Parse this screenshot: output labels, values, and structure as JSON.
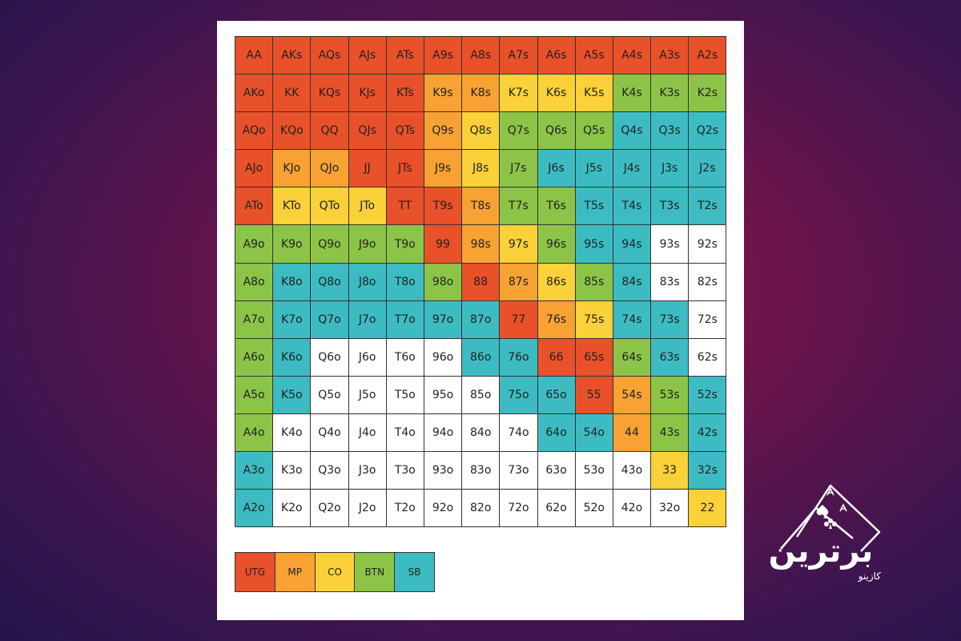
{
  "colors": {
    "UTG": "#e9512a",
    "MP": "#f7a233",
    "CO": "#fad138",
    "BTN": "#8cc448",
    "SB": "#3cbcc2",
    "NONE": "#ffffff"
  },
  "grid": [
    [
      [
        "AA",
        "UTG"
      ],
      [
        "AKs",
        "UTG"
      ],
      [
        "AQs",
        "UTG"
      ],
      [
        "AJs",
        "UTG"
      ],
      [
        "ATs",
        "UTG"
      ],
      [
        "A9s",
        "UTG"
      ],
      [
        "A8s",
        "UTG"
      ],
      [
        "A7s",
        "UTG"
      ],
      [
        "A6s",
        "UTG"
      ],
      [
        "A5s",
        "UTG"
      ],
      [
        "A4s",
        "UTG"
      ],
      [
        "A3s",
        "UTG"
      ],
      [
        "A2s",
        "UTG"
      ]
    ],
    [
      [
        "AKo",
        "UTG"
      ],
      [
        "KK",
        "UTG"
      ],
      [
        "KQs",
        "UTG"
      ],
      [
        "KJs",
        "UTG"
      ],
      [
        "KTs",
        "UTG"
      ],
      [
        "K9s",
        "MP"
      ],
      [
        "K8s",
        "MP"
      ],
      [
        "K7s",
        "CO"
      ],
      [
        "K6s",
        "CO"
      ],
      [
        "K5s",
        "CO"
      ],
      [
        "K4s",
        "BTN"
      ],
      [
        "K3s",
        "BTN"
      ],
      [
        "K2s",
        "BTN"
      ]
    ],
    [
      [
        "AQo",
        "UTG"
      ],
      [
        "KQo",
        "UTG"
      ],
      [
        "QQ",
        "UTG"
      ],
      [
        "QJs",
        "UTG"
      ],
      [
        "QTs",
        "UTG"
      ],
      [
        "Q9s",
        "MP"
      ],
      [
        "Q8s",
        "CO"
      ],
      [
        "Q7s",
        "BTN"
      ],
      [
        "Q6s",
        "BTN"
      ],
      [
        "Q5s",
        "BTN"
      ],
      [
        "Q4s",
        "SB"
      ],
      [
        "Q3s",
        "SB"
      ],
      [
        "Q2s",
        "SB"
      ]
    ],
    [
      [
        "AJo",
        "UTG"
      ],
      [
        "KJo",
        "MP"
      ],
      [
        "QJo",
        "MP"
      ],
      [
        "JJ",
        "UTG"
      ],
      [
        "JTs",
        "UTG"
      ],
      [
        "J9s",
        "MP"
      ],
      [
        "J8s",
        "CO"
      ],
      [
        "J7s",
        "BTN"
      ],
      [
        "J6s",
        "SB"
      ],
      [
        "J5s",
        "SB"
      ],
      [
        "J4s",
        "SB"
      ],
      [
        "J3s",
        "SB"
      ],
      [
        "J2s",
        "SB"
      ]
    ],
    [
      [
        "ATo",
        "UTG"
      ],
      [
        "KTo",
        "CO"
      ],
      [
        "QTo",
        "CO"
      ],
      [
        "JTo",
        "CO"
      ],
      [
        "TT",
        "UTG"
      ],
      [
        "T9s",
        "UTG"
      ],
      [
        "T8s",
        "MP"
      ],
      [
        "T7s",
        "BTN"
      ],
      [
        "T6s",
        "BTN"
      ],
      [
        "T5s",
        "SB"
      ],
      [
        "T4s",
        "SB"
      ],
      [
        "T3s",
        "SB"
      ],
      [
        "T2s",
        "SB"
      ]
    ],
    [
      [
        "A9o",
        "BTN"
      ],
      [
        "K9o",
        "BTN"
      ],
      [
        "Q9o",
        "BTN"
      ],
      [
        "J9o",
        "BTN"
      ],
      [
        "T9o",
        "BTN"
      ],
      [
        "99",
        "UTG"
      ],
      [
        "98s",
        "MP"
      ],
      [
        "97s",
        "CO"
      ],
      [
        "96s",
        "BTN"
      ],
      [
        "95s",
        "SB"
      ],
      [
        "94s",
        "SB"
      ],
      [
        "93s",
        "NONE"
      ],
      [
        "92s",
        "NONE"
      ]
    ],
    [
      [
        "A8o",
        "BTN"
      ],
      [
        "K8o",
        "SB"
      ],
      [
        "Q8o",
        "SB"
      ],
      [
        "J8o",
        "SB"
      ],
      [
        "T8o",
        "SB"
      ],
      [
        "98o",
        "BTN"
      ],
      [
        "88",
        "UTG"
      ],
      [
        "87s",
        "MP"
      ],
      [
        "86s",
        "CO"
      ],
      [
        "85s",
        "BTN"
      ],
      [
        "84s",
        "SB"
      ],
      [
        "83s",
        "NONE"
      ],
      [
        "82s",
        "NONE"
      ]
    ],
    [
      [
        "A7o",
        "BTN"
      ],
      [
        "K7o",
        "SB"
      ],
      [
        "Q7o",
        "SB"
      ],
      [
        "J7o",
        "SB"
      ],
      [
        "T7o",
        "SB"
      ],
      [
        "97o",
        "SB"
      ],
      [
        "87o",
        "SB"
      ],
      [
        "77",
        "UTG"
      ],
      [
        "76s",
        "MP"
      ],
      [
        "75s",
        "CO"
      ],
      [
        "74s",
        "SB"
      ],
      [
        "73s",
        "SB"
      ],
      [
        "72s",
        "NONE"
      ]
    ],
    [
      [
        "A6o",
        "BTN"
      ],
      [
        "K6o",
        "SB"
      ],
      [
        "Q6o",
        "NONE"
      ],
      [
        "J6o",
        "NONE"
      ],
      [
        "T6o",
        "NONE"
      ],
      [
        "96o",
        "NONE"
      ],
      [
        "86o",
        "SB"
      ],
      [
        "76o",
        "SB"
      ],
      [
        "66",
        "UTG"
      ],
      [
        "65s",
        "UTG"
      ],
      [
        "64s",
        "BTN"
      ],
      [
        "63s",
        "SB"
      ],
      [
        "62s",
        "NONE"
      ]
    ],
    [
      [
        "A5o",
        "BTN"
      ],
      [
        "K5o",
        "SB"
      ],
      [
        "Q5o",
        "NONE"
      ],
      [
        "J5o",
        "NONE"
      ],
      [
        "T5o",
        "NONE"
      ],
      [
        "95o",
        "NONE"
      ],
      [
        "85o",
        "NONE"
      ],
      [
        "75o",
        "SB"
      ],
      [
        "65o",
        "SB"
      ],
      [
        "55",
        "UTG"
      ],
      [
        "54s",
        "MP"
      ],
      [
        "53s",
        "BTN"
      ],
      [
        "52s",
        "SB"
      ]
    ],
    [
      [
        "A4o",
        "BTN"
      ],
      [
        "K4o",
        "NONE"
      ],
      [
        "Q4o",
        "NONE"
      ],
      [
        "J4o",
        "NONE"
      ],
      [
        "T4o",
        "NONE"
      ],
      [
        "94o",
        "NONE"
      ],
      [
        "84o",
        "NONE"
      ],
      [
        "74o",
        "NONE"
      ],
      [
        "64o",
        "SB"
      ],
      [
        "54o",
        "SB"
      ],
      [
        "44",
        "MP"
      ],
      [
        "43s",
        "BTN"
      ],
      [
        "42s",
        "SB"
      ]
    ],
    [
      [
        "A3o",
        "SB"
      ],
      [
        "K3o",
        "NONE"
      ],
      [
        "Q3o",
        "NONE"
      ],
      [
        "J3o",
        "NONE"
      ],
      [
        "T3o",
        "NONE"
      ],
      [
        "93o",
        "NONE"
      ],
      [
        "83o",
        "NONE"
      ],
      [
        "73o",
        "NONE"
      ],
      [
        "63o",
        "NONE"
      ],
      [
        "53o",
        "NONE"
      ],
      [
        "43o",
        "NONE"
      ],
      [
        "33",
        "CO"
      ],
      [
        "32s",
        "SB"
      ]
    ],
    [
      [
        "A2o",
        "SB"
      ],
      [
        "K2o",
        "NONE"
      ],
      [
        "Q2o",
        "NONE"
      ],
      [
        "J2o",
        "NONE"
      ],
      [
        "T2o",
        "NONE"
      ],
      [
        "92o",
        "NONE"
      ],
      [
        "82o",
        "NONE"
      ],
      [
        "72o",
        "NONE"
      ],
      [
        "62o",
        "NONE"
      ],
      [
        "52o",
        "NONE"
      ],
      [
        "42o",
        "NONE"
      ],
      [
        "32o",
        "NONE"
      ],
      [
        "22",
        "CO"
      ]
    ]
  ],
  "legend": [
    {
      "label": "UTG",
      "color": "#e9512a"
    },
    {
      "label": "MP",
      "color": "#f7a233"
    },
    {
      "label": "CO",
      "color": "#fad138"
    },
    {
      "label": "BTN",
      "color": "#8cc448"
    },
    {
      "label": "SB",
      "color": "#3cbcc2"
    }
  ],
  "logo": {
    "name": "برترین",
    "subtitle": "کازینو"
  }
}
